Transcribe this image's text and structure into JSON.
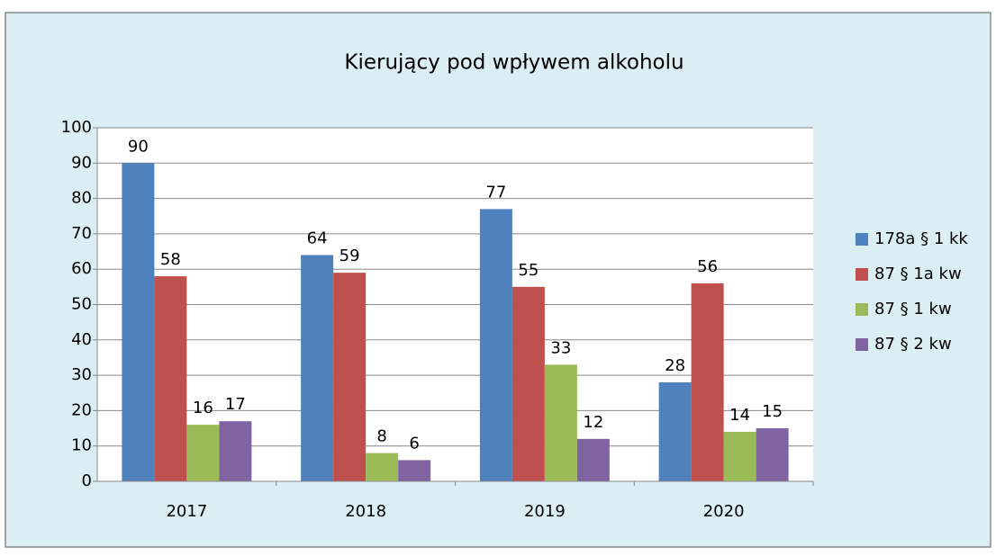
{
  "chart_data": {
    "type": "bar",
    "title": "Kierujący pod wpływem alkoholu",
    "categories": [
      "2017",
      "2018",
      "2019",
      "2020"
    ],
    "series": [
      {
        "name": "178a § 1 kk",
        "color": "#4f81bd",
        "values": [
          90,
          64,
          77,
          28
        ]
      },
      {
        "name": "87 § 1a kw",
        "color": "#c0504d",
        "values": [
          58,
          59,
          55,
          56
        ]
      },
      {
        "name": "87 § 1 kw",
        "color": "#9bbb59",
        "values": [
          16,
          8,
          33,
          14
        ]
      },
      {
        "name": "87 § 2 kw",
        "color": "#8064a2",
        "values": [
          17,
          6,
          12,
          15
        ]
      }
    ],
    "ylim": [
      0,
      100
    ],
    "yticks": [
      0,
      10,
      20,
      30,
      40,
      50,
      60,
      70,
      80,
      90,
      100
    ],
    "grid": true,
    "legend": "right"
  }
}
